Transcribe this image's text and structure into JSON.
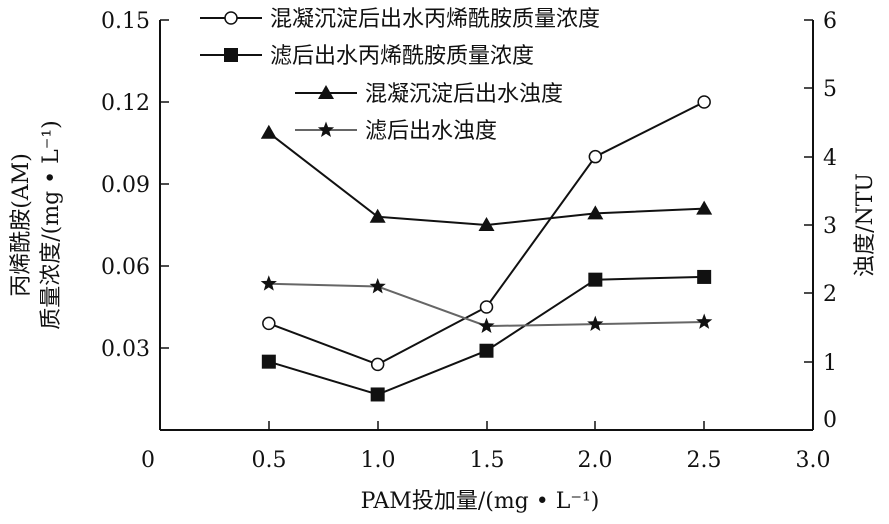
{
  "chart_data": {
    "type": "line",
    "xlabel": "PAM投加量/(mg • L⁻¹)",
    "ylabel_left": [
      "丙烯酰胺(AM)",
      "质量浓度/(mg • L⁻¹)"
    ],
    "ylabel_right": "浊度/NTU",
    "x_ticks": [
      "0",
      "0.5",
      "1.0",
      "1.5",
      "2.0",
      "2.5",
      "3.0"
    ],
    "y_left_ticks": [
      "0.15",
      "0.12",
      "0.09",
      "0.06",
      "0.03",
      "0"
    ],
    "y_right_ticks": [
      "6",
      "5",
      "4",
      "3",
      "2",
      "1",
      "0"
    ],
    "xlim": [
      0,
      3.0
    ],
    "ylim_left": [
      0,
      0.15
    ],
    "ylim_right": [
      0,
      6
    ],
    "grid": false,
    "legend_position": "top",
    "x": [
      0.5,
      1.0,
      1.5,
      2.0,
      2.5
    ],
    "series": [
      {
        "name": "混凝沉淀后出水丙烯酰胺质量浓度",
        "axis": "left",
        "marker": "open-circle",
        "color": "#111111",
        "values": [
          0.039,
          0.024,
          0.045,
          0.1,
          0.12
        ]
      },
      {
        "name": "滤后出水丙烯酰胺质量浓度",
        "axis": "left",
        "marker": "filled-square",
        "color": "#111111",
        "values": [
          0.025,
          0.013,
          0.029,
          0.055,
          0.056
        ]
      },
      {
        "name": "混凝沉淀后出水浊度",
        "axis": "right",
        "marker": "filled-triangle",
        "color": "#111111",
        "values": [
          4.35,
          3.12,
          3.0,
          3.17,
          3.24
        ]
      },
      {
        "name": "滤后出水浊度",
        "axis": "right",
        "marker": "star",
        "color": "#666666",
        "values": [
          2.14,
          2.1,
          1.52,
          1.55,
          1.58
        ]
      }
    ]
  }
}
